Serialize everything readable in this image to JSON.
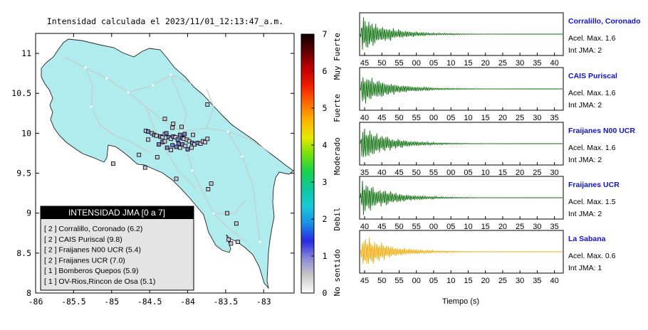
{
  "map": {
    "title": "Intensidad calculada el 2023/11/01_12:13:47_a.m.",
    "lon_range": [
      -86,
      -82.6
    ],
    "lat_range": [
      8,
      11.25
    ],
    "x_ticks": [
      -86,
      -85.5,
      -85,
      -84.5,
      -84,
      -83.5,
      -83
    ],
    "x_tick_labels": [
      "-86",
      "-85.5",
      "-85",
      "-84.5",
      "-84",
      "-83.5",
      "-83"
    ],
    "y_ticks": [
      8,
      8.5,
      9,
      9.5,
      10,
      10.5,
      11
    ],
    "y_tick_labels": [
      "8",
      "8.5",
      "9",
      "9.5",
      "10",
      "10.5",
      "11"
    ],
    "stations": [
      {
        "lon": -84.12,
        "lat": 9.87,
        "level": 2
      },
      {
        "lon": -84.38,
        "lat": 9.86,
        "level": 2
      },
      {
        "lon": -84.33,
        "lat": 9.89,
        "level": 2
      },
      {
        "lon": -84.07,
        "lat": 9.94,
        "level": 2
      },
      {
        "lon": -84.05,
        "lat": 9.93,
        "level": 1
      },
      {
        "lon": -84.55,
        "lat": 10.03,
        "level": 1
      },
      {
        "lon": -84.52,
        "lat": 10.02,
        "level": 2
      },
      {
        "lon": -84.47,
        "lat": 10.0,
        "level": 1
      },
      {
        "lon": -84.44,
        "lat": 9.98,
        "level": 2
      },
      {
        "lon": -84.41,
        "lat": 9.97,
        "level": 1
      },
      {
        "lon": -84.36,
        "lat": 9.96,
        "level": 2
      },
      {
        "lon": -84.33,
        "lat": 9.95,
        "level": 1
      },
      {
        "lon": -84.3,
        "lat": 9.99,
        "level": 1
      },
      {
        "lon": -84.28,
        "lat": 10.0,
        "level": 2
      },
      {
        "lon": -84.25,
        "lat": 9.95,
        "level": 2
      },
      {
        "lon": -84.22,
        "lat": 9.93,
        "level": 1
      },
      {
        "lon": -84.19,
        "lat": 9.96,
        "level": 2
      },
      {
        "lon": -84.16,
        "lat": 9.95,
        "level": 1
      },
      {
        "lon": -84.13,
        "lat": 9.92,
        "level": 2
      },
      {
        "lon": -84.1,
        "lat": 9.98,
        "level": 2
      },
      {
        "lon": -84.04,
        "lat": 9.99,
        "level": 2
      },
      {
        "lon": -84.01,
        "lat": 9.92,
        "level": 1
      },
      {
        "lon": -83.98,
        "lat": 9.9,
        "level": 1
      },
      {
        "lon": -83.94,
        "lat": 9.88,
        "level": 2
      },
      {
        "lon": -83.91,
        "lat": 9.86,
        "level": 1
      },
      {
        "lon": -83.87,
        "lat": 9.88,
        "level": 2
      },
      {
        "lon": -83.83,
        "lat": 9.87,
        "level": 1
      },
      {
        "lon": -83.8,
        "lat": 9.9,
        "level": 1
      },
      {
        "lon": -83.77,
        "lat": 9.89,
        "level": 1
      },
      {
        "lon": -83.74,
        "lat": 9.93,
        "level": 1
      },
      {
        "lon": -84.2,
        "lat": 9.85,
        "level": 2
      },
      {
        "lon": -84.15,
        "lat": 9.83,
        "level": 2
      },
      {
        "lon": -84.1,
        "lat": 9.82,
        "level": 1
      },
      {
        "lon": -84.07,
        "lat": 9.86,
        "level": 2
      },
      {
        "lon": -84.03,
        "lat": 9.84,
        "level": 1
      },
      {
        "lon": -84.0,
        "lat": 9.8,
        "level": 2
      },
      {
        "lon": -83.95,
        "lat": 9.82,
        "level": 1
      },
      {
        "lon": -84.27,
        "lat": 9.82,
        "level": 2
      },
      {
        "lon": -84.22,
        "lat": 9.79,
        "level": 1
      },
      {
        "lon": -84.3,
        "lat": 10.18,
        "level": 1
      },
      {
        "lon": -84.19,
        "lat": 10.12,
        "level": 1
      },
      {
        "lon": -84.2,
        "lat": 10.07,
        "level": 1
      },
      {
        "lon": -84.08,
        "lat": 10.08,
        "level": 1
      },
      {
        "lon": -83.74,
        "lat": 10.36,
        "level": 1
      },
      {
        "lon": -84.64,
        "lat": 9.73,
        "level": 1
      },
      {
        "lon": -84.56,
        "lat": 9.57,
        "level": 1
      },
      {
        "lon": -84.98,
        "lat": 9.62,
        "level": 1
      },
      {
        "lon": -84.4,
        "lat": 9.7,
        "level": 1
      },
      {
        "lon": -84.15,
        "lat": 9.43,
        "level": 1
      },
      {
        "lon": -83.69,
        "lat": 9.37,
        "level": 1
      },
      {
        "lon": -83.48,
        "lat": 9.0,
        "level": 1
      },
      {
        "lon": -83.36,
        "lat": 8.87,
        "level": 1
      },
      {
        "lon": -83.34,
        "lat": 8.64,
        "level": 1
      },
      {
        "lon": -83.46,
        "lat": 8.67,
        "level": 1
      },
      {
        "lon": -83.43,
        "lat": 8.62,
        "level": 1
      },
      {
        "lon": -83.73,
        "lat": 9.3,
        "level": 1
      },
      {
        "lon": -84.52,
        "lat": 9.92,
        "level": 1
      },
      {
        "lon": -83.93,
        "lat": 9.98,
        "level": 1
      },
      {
        "lon": -84.3,
        "lat": 9.9,
        "level": 1
      }
    ]
  },
  "legend": {
    "title": "INTENSIDAD JMA [0 a 7]",
    "items": [
      "[ 2 ] Corralillo, Coronado (6.2)",
      "[ 2 ] CAIS Puriscal (9.8)",
      "[ 2 ] Fraijanes N00 UCR (5.4)",
      "[ 2 ] Fraijanes UCR (7.0)",
      "[ 1 ] Bomberos Quepos (5.9)",
      "[ 1 ] OV-Rios,Rincon de Osa (5.1)"
    ]
  },
  "colorbar": {
    "min": 0,
    "max": 7,
    "ticks": [
      "0",
      "1",
      "2",
      "3",
      "4",
      "5",
      "6",
      "7"
    ],
    "category_labels": [
      "No sentido",
      "Debil",
      "Moderado",
      "Fuerte",
      "Muy Fuerte"
    ],
    "colors": [
      "#ffffff",
      "#c8c8c8",
      "#8b8bd8",
      "#2828e0",
      "#1c8ce6",
      "#18c8d8",
      "#10c8a0",
      "#18d050",
      "#6ee010",
      "#e8e800",
      "#ffb400",
      "#ff6a00",
      "#f01e00",
      "#c00000",
      "#600000",
      "#100000"
    ]
  },
  "traces": {
    "xlabel": "Tiempo (s)",
    "rows": [
      {
        "name": "Corralillo, Coronado",
        "accel": "Acel. Max. 1.6",
        "jma": "Int JMA: 2",
        "color": "#0a6e0a",
        "ticks": [
          "45",
          "50",
          "55",
          "00",
          "05",
          "10",
          "15",
          "20",
          "25",
          "30",
          "35",
          "40"
        ],
        "start": 43
      },
      {
        "name": "CAIS Puriscal",
        "accel": "Acel. Max. 1.6",
        "jma": "Int JMA: 2",
        "color": "#0a6e0a",
        "ticks": [
          "40",
          "45",
          "50",
          "55",
          "00",
          "05",
          "10",
          "15",
          "20",
          "25",
          "30",
          "35"
        ],
        "start": 38
      },
      {
        "name": "Fraijanes N00 UCR",
        "accel": "Acel. Max. 1.6",
        "jma": "Int JMA: 2",
        "color": "#0a6e0a",
        "ticks": [
          "35",
          "40",
          "45",
          "50",
          "55",
          "00",
          "05",
          "10",
          "15",
          "20",
          "25",
          "30"
        ],
        "start": 34
      },
      {
        "name": "Fraijanes UCR",
        "accel": "Acel. Max. 1.5",
        "jma": "Int JMA: 2",
        "color": "#0a6e0a",
        "ticks": [
          "40",
          "45",
          "50",
          "55",
          "00",
          "05",
          "10",
          "15",
          "20",
          "25",
          "30",
          "35"
        ],
        "start": 39
      },
      {
        "name": "La Sabana",
        "accel": "Acel. Max. 0.6",
        "jma": "Int JMA: 1",
        "color": "#f5a800",
        "ticks": [
          "45",
          "50",
          "55",
          "00",
          "05",
          "10",
          "15",
          "20",
          "25",
          "30",
          "35",
          "40"
        ],
        "start": 42
      }
    ]
  }
}
